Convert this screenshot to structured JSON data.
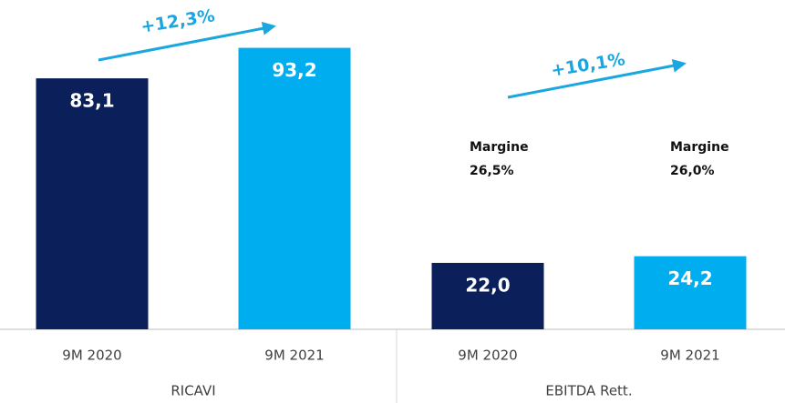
{
  "chart_data": {
    "type": "bar",
    "categories": [
      "RICAVI",
      "EBITDA Rett."
    ],
    "series": [
      {
        "name": "9M 2020",
        "color": "#0b1f5b",
        "values": [
          83.1,
          22.0
        ],
        "value_labels": [
          "83,1",
          "22,0"
        ]
      },
      {
        "name": "9M 2021",
        "color": "#00adef",
        "values": [
          93.2,
          24.2
        ],
        "value_labels": [
          "93,2",
          "24,2"
        ]
      }
    ],
    "ylim": [
      0,
      100
    ],
    "growth_labels": [
      "+12,3%",
      "+10,1%"
    ],
    "margin_labels": [
      [
        "Margine",
        "26,5%"
      ],
      [
        "Margine",
        "26,0%"
      ]
    ]
  }
}
